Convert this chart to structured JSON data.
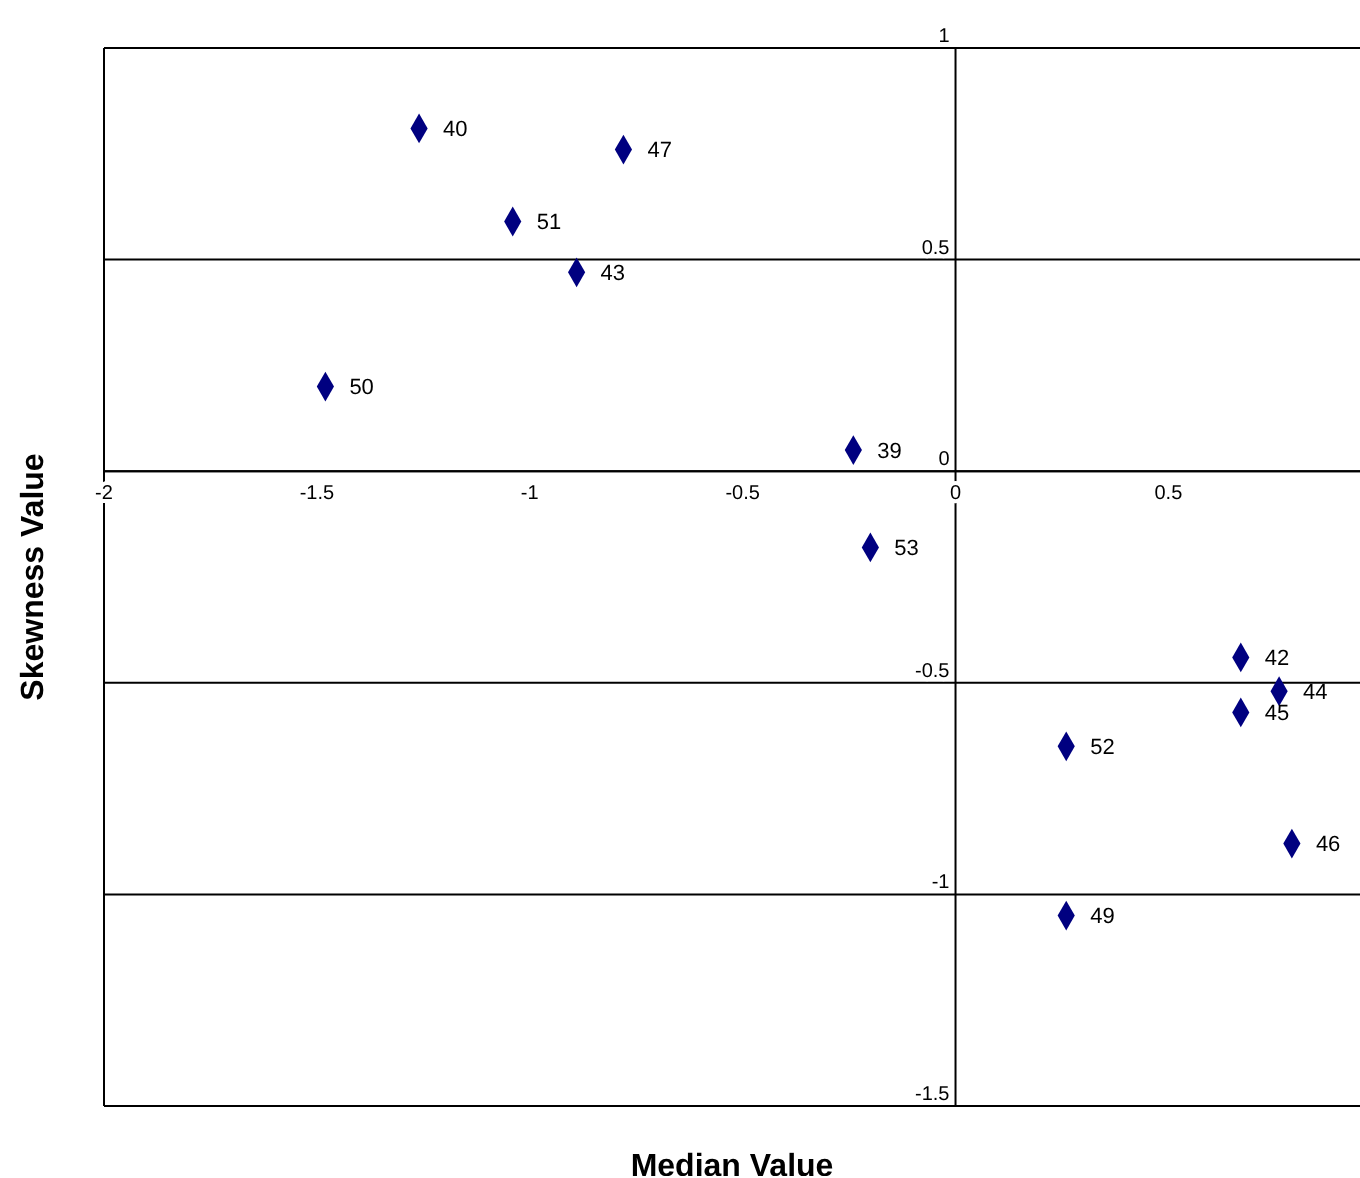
{
  "chart_data": {
    "type": "scatter",
    "xlabel": "Median Value",
    "ylabel": "Skewness Value",
    "x": [
      -1.26,
      -0.78,
      -1.04,
      -0.89,
      -1.48,
      -0.24,
      -0.2,
      0.67,
      0.76,
      0.67,
      0.26,
      0.79,
      0.26
    ],
    "series": [
      {
        "color": "#000080",
        "values": [
          0.81,
          0.76,
          0.59,
          0.47,
          0.2,
          0.05,
          -0.18,
          -0.44,
          -0.52,
          -0.57,
          -0.65,
          -0.88,
          -1.05
        ]
      }
    ],
    "annotations": [
      {
        "text": "40",
        "x": -1.26,
        "y": 0.81
      },
      {
        "text": "47",
        "x": -0.78,
        "y": 0.76
      },
      {
        "text": "51",
        "x": -1.04,
        "y": 0.59
      },
      {
        "text": "43",
        "x": -0.89,
        "y": 0.47
      },
      {
        "text": "50",
        "x": -1.48,
        "y": 0.2
      },
      {
        "text": "39",
        "x": -0.24,
        "y": 0.05
      },
      {
        "text": "53",
        "x": -0.2,
        "y": -0.18
      },
      {
        "text": "42",
        "x": 0.67,
        "y": -0.44
      },
      {
        "text": "44",
        "x": 0.76,
        "y": -0.52
      },
      {
        "text": "45",
        "x": 0.67,
        "y": -0.57
      },
      {
        "text": "52",
        "x": 0.26,
        "y": -0.65
      },
      {
        "text": "46",
        "x": 0.79,
        "y": -0.88
      },
      {
        "text": "49",
        "x": 0.26,
        "y": -1.05
      }
    ],
    "xlim": [
      -2,
      0.95
    ],
    "xticks": [
      -2,
      -1.5,
      -1,
      -0.5,
      0,
      0.5
    ],
    "ylim": [
      -1.5,
      1
    ],
    "yticks": [
      -1.5,
      -1,
      -0.5,
      0,
      0.5,
      1
    ],
    "grid": "y",
    "marker": "diamond",
    "legend": false
  }
}
